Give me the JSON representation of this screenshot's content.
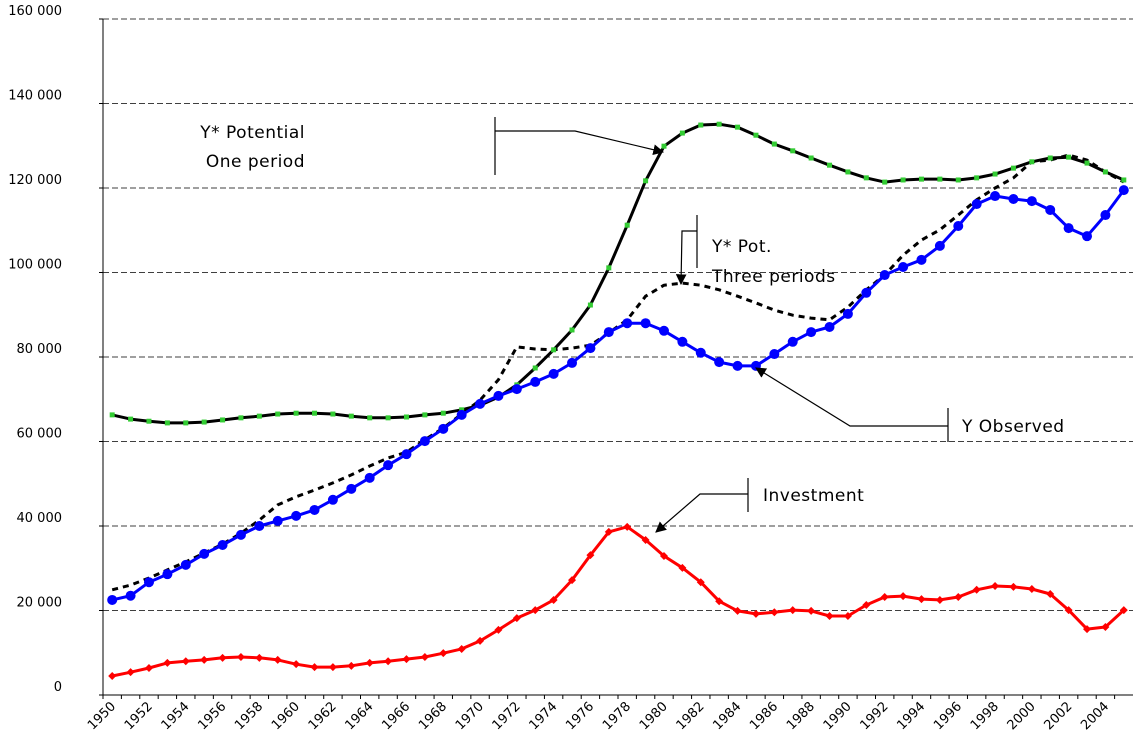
{
  "chart_data": {
    "type": "line",
    "categories": [
      "1950",
      null,
      "1952",
      null,
      "1954",
      null,
      "1956",
      null,
      "1958",
      null,
      "1960",
      null,
      "1962",
      null,
      "1964",
      null,
      "1966",
      null,
      "1968",
      null,
      "1970",
      null,
      "1972",
      null,
      "1974",
      null,
      "1976",
      null,
      "1978",
      null,
      "1980",
      null,
      "1982",
      null,
      "1984",
      null,
      "1986",
      null,
      "1988",
      null,
      "1990",
      null,
      "1992",
      null,
      "1994",
      null,
      "1996",
      null,
      "1998",
      null,
      "2000",
      null,
      "2002",
      null,
      "2004",
      null
    ],
    "ylim": [
      0,
      160000
    ],
    "yticks": [
      0,
      {
        "value": 20000,
        "label": "20 000"
      },
      {
        "value": 40000,
        "label": "40 000"
      },
      {
        "value": 60000,
        "label": "60 000"
      },
      {
        "value": 80000,
        "label": "80 000"
      },
      {
        "value": 100000,
        "label": "100 000"
      },
      {
        "value": 120000,
        "label": "120 000"
      },
      {
        "value": 140000,
        "label": "140 000"
      },
      {
        "value": 160000,
        "label": "160 000"
      }
    ],
    "grid": true,
    "annotations": [
      "Y* Potential",
      "One period",
      "Y* Pot.",
      "Three periods",
      "Y Observed",
      "Investment"
    ],
    "series": [
      {
        "color": "#000000",
        "dash": true,
        "marker": "none",
        "values": [
          24900,
          26000,
          27700,
          29600,
          31500,
          33600,
          35700,
          38300,
          41400,
          45000,
          46900,
          48500,
          50200,
          52100,
          54200,
          56100,
          57500,
          60400,
          63200,
          66500,
          69800,
          74600,
          82400,
          81900,
          81700,
          82100,
          82800,
          85700,
          88800,
          94400,
          97000,
          97500,
          97000,
          95900,
          94400,
          92800,
          91100,
          89900,
          89200,
          88800,
          91800,
          95900,
          99400,
          104100,
          107700,
          110100,
          113600,
          117200,
          120000,
          122400,
          126200,
          126600,
          127800,
          126600,
          123800,
          121400
        ]
      },
      {
        "color": "#000000",
        "marker": "square",
        "marker_color": "#33cc33",
        "values": [
          66300,
          65300,
          64800,
          64400,
          64400,
          64600,
          65100,
          65600,
          66000,
          66500,
          66700,
          66700,
          66500,
          66000,
          65600,
          65600,
          65800,
          66300,
          66700,
          67500,
          68600,
          70500,
          73400,
          77400,
          81700,
          86400,
          92300,
          101100,
          111200,
          121700,
          129900,
          133000,
          134900,
          135100,
          134400,
          132500,
          130400,
          128800,
          127100,
          125400,
          123800,
          122400,
          121400,
          121900,
          122100,
          122100,
          121900,
          122400,
          123300,
          124700,
          126200,
          127100,
          127300,
          125900,
          123800,
          121900
        ]
      },
      {
        "color": "#0000ff",
        "marker": "circle",
        "marker_color": "#0000ff",
        "values": [
          22500,
          23500,
          26700,
          28600,
          30800,
          33400,
          35500,
          37900,
          40000,
          41200,
          42400,
          43800,
          46200,
          48800,
          51400,
          54400,
          57000,
          60100,
          63000,
          66300,
          68900,
          70800,
          72400,
          74100,
          76000,
          78600,
          82100,
          85900,
          88000,
          88000,
          86200,
          83600,
          81000,
          78800,
          77900,
          77900,
          80700,
          83600,
          85900,
          87100,
          90200,
          95200,
          99400,
          101300,
          103000,
          106300,
          111000,
          116200,
          118100,
          117400,
          116900,
          114800,
          110500,
          108600,
          113600,
          119500
        ]
      },
      {
        "color": "#ff0000",
        "marker": "diamond",
        "marker_color": "#ff0000",
        "values": [
          4500,
          5400,
          6400,
          7600,
          8000,
          8300,
          8800,
          9000,
          8800,
          8300,
          7300,
          6600,
          6600,
          6900,
          7600,
          8000,
          8500,
          9000,
          9900,
          10900,
          12800,
          15400,
          18200,
          20100,
          22500,
          27200,
          33100,
          38600,
          39800,
          36700,
          32900,
          30100,
          26700,
          22200,
          19900,
          19200,
          19600,
          20100,
          19900,
          18700,
          18700,
          21300,
          23200,
          23400,
          22700,
          22500,
          23200,
          24900,
          25800,
          25600,
          25100,
          23900,
          20100,
          15600,
          16100,
          20100
        ]
      }
    ]
  }
}
